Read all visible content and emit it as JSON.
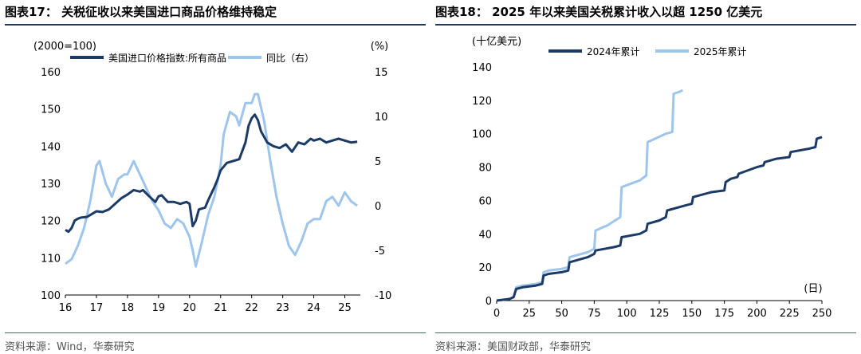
{
  "left": {
    "title": "图表17：  关税征收以来美国进口商品价格维持稳定",
    "source": "资料来源：Wind，华泰研究"
  },
  "right": {
    "title": "图表18：  2025 年以来美国关税累计收入以超 1250 亿美元",
    "source": "资料来源：美国财政部，华泰研究"
  },
  "colors": {
    "dark_series": "#1b3a66",
    "light_series": "#9ec5ec",
    "rule": "#1f3a68"
  },
  "chart_data": [
    {
      "type": "line",
      "ylabel": "(2000=100)",
      "y2label": "(%)",
      "ylim": [
        100,
        160
      ],
      "yticks": [
        100,
        110,
        120,
        130,
        140,
        150,
        160
      ],
      "y2lim": [
        -10,
        15
      ],
      "y2ticks": [
        -10,
        -5,
        0,
        5,
        10,
        15
      ],
      "xlim": [
        16,
        25.5
      ],
      "xticks": [
        "16",
        "17",
        "18",
        "19",
        "20",
        "21",
        "22",
        "23",
        "24",
        "25"
      ],
      "legend_position": "top",
      "series": [
        {
          "name": "美国进口价格指数:所有商品",
          "axis": "left",
          "x": [
            16.0,
            16.1,
            16.2,
            16.3,
            16.4,
            16.5,
            16.7,
            16.9,
            17.0,
            17.2,
            17.4,
            17.6,
            17.8,
            18.0,
            18.2,
            18.4,
            18.5,
            18.7,
            18.9,
            19.0,
            19.1,
            19.3,
            19.5,
            19.7,
            19.9,
            20.0,
            20.1,
            20.2,
            20.3,
            20.5,
            20.6,
            20.8,
            20.9,
            21.0,
            21.2,
            21.4,
            21.6,
            21.8,
            21.9,
            22.0,
            22.1,
            22.2,
            22.3,
            22.5,
            22.7,
            22.9,
            23.1,
            23.3,
            23.5,
            23.7,
            23.9,
            24.0,
            24.2,
            24.4,
            24.6,
            24.8,
            25.0,
            25.2,
            25.4
          ],
          "values": [
            117.5,
            117.0,
            118.0,
            120.0,
            120.5,
            120.8,
            121.0,
            122.0,
            122.5,
            122.3,
            123.0,
            124.5,
            126.0,
            127.0,
            128.2,
            127.8,
            128.2,
            126.5,
            125.0,
            126.5,
            126.8,
            125.0,
            125.0,
            124.5,
            125.0,
            124.5,
            118.5,
            120.0,
            123.0,
            123.5,
            125.5,
            129.0,
            131.0,
            133.5,
            135.5,
            136.0,
            136.5,
            141.0,
            145.5,
            147.5,
            148.5,
            147.0,
            144.0,
            141.0,
            140.0,
            139.5,
            140.5,
            138.5,
            141.0,
            140.5,
            142.0,
            141.5,
            142.0,
            141.0,
            141.5,
            142.0,
            141.5,
            141.0,
            141.2
          ]
        },
        {
          "name": "同比（右）",
          "axis": "right",
          "x": [
            16.0,
            16.2,
            16.4,
            16.6,
            16.8,
            17.0,
            17.1,
            17.3,
            17.5,
            17.7,
            17.9,
            18.0,
            18.2,
            18.4,
            18.6,
            18.8,
            19.0,
            19.2,
            19.4,
            19.6,
            19.8,
            20.0,
            20.1,
            20.2,
            20.4,
            20.6,
            20.8,
            21.0,
            21.1,
            21.3,
            21.5,
            21.6,
            21.8,
            22.0,
            22.1,
            22.2,
            22.4,
            22.6,
            22.8,
            23.0,
            23.2,
            23.4,
            23.6,
            23.8,
            24.0,
            24.2,
            24.4,
            24.6,
            24.8,
            25.0,
            25.2,
            25.4
          ],
          "values": [
            -6.5,
            -6.0,
            -4.5,
            -2.5,
            0.5,
            4.5,
            5.0,
            2.5,
            1.0,
            3.0,
            3.5,
            3.5,
            5.0,
            3.5,
            2.0,
            0.5,
            -0.5,
            -2.0,
            -2.5,
            -1.5,
            -2.0,
            -3.5,
            -5.0,
            -6.8,
            -4.0,
            -1.0,
            1.0,
            4.5,
            8.0,
            10.5,
            10.0,
            9.0,
            11.5,
            11.5,
            12.5,
            12.5,
            9.5,
            5.0,
            1.0,
            -2.0,
            -4.5,
            -5.5,
            -4.0,
            -2.0,
            -1.5,
            -1.5,
            0.5,
            1.0,
            0.0,
            1.5,
            0.5,
            0.0
          ]
        }
      ]
    },
    {
      "type": "line",
      "ylabel": "(十亿美元)",
      "xlabel": "(日)",
      "ylim": [
        0,
        140
      ],
      "yticks": [
        0,
        20,
        40,
        60,
        80,
        100,
        120,
        140
      ],
      "xlim": [
        0,
        250
      ],
      "xticks": [
        0,
        25,
        50,
        75,
        100,
        125,
        150,
        175,
        200,
        225,
        250
      ],
      "legend_position": "top",
      "series": [
        {
          "name": "2024年累计",
          "x": [
            0,
            10,
            13,
            15,
            20,
            30,
            35,
            36,
            40,
            50,
            55,
            56,
            70,
            75,
            76,
            90,
            95,
            96,
            110,
            115,
            116,
            125,
            130,
            131,
            145,
            150,
            151,
            165,
            175,
            176,
            180,
            185,
            186,
            200,
            205,
            206,
            215,
            225,
            226,
            240,
            245,
            246,
            250
          ],
          "values": [
            0,
            1,
            2,
            7,
            8,
            9,
            10,
            15,
            16,
            17,
            18,
            23,
            26,
            28,
            30,
            32,
            33,
            38,
            40,
            42,
            46,
            48,
            50,
            54,
            57,
            58,
            62,
            65,
            66,
            71,
            73,
            74,
            76,
            80,
            81,
            83,
            85,
            86,
            89,
            91,
            92,
            97,
            98
          ]
        },
        {
          "name": "2025年累计",
          "x": [
            0,
            10,
            13,
            15,
            20,
            30,
            35,
            36,
            40,
            50,
            55,
            56,
            70,
            75,
            76,
            85,
            95,
            96,
            110,
            115,
            116,
            130,
            135,
            136,
            140,
            143
          ],
          "values": [
            0,
            1,
            2,
            8,
            9,
            10,
            11,
            17,
            18,
            19,
            20,
            26,
            29,
            31,
            42,
            45,
            50,
            68,
            72,
            75,
            95,
            100,
            101,
            124,
            125,
            126
          ]
        }
      ]
    }
  ]
}
